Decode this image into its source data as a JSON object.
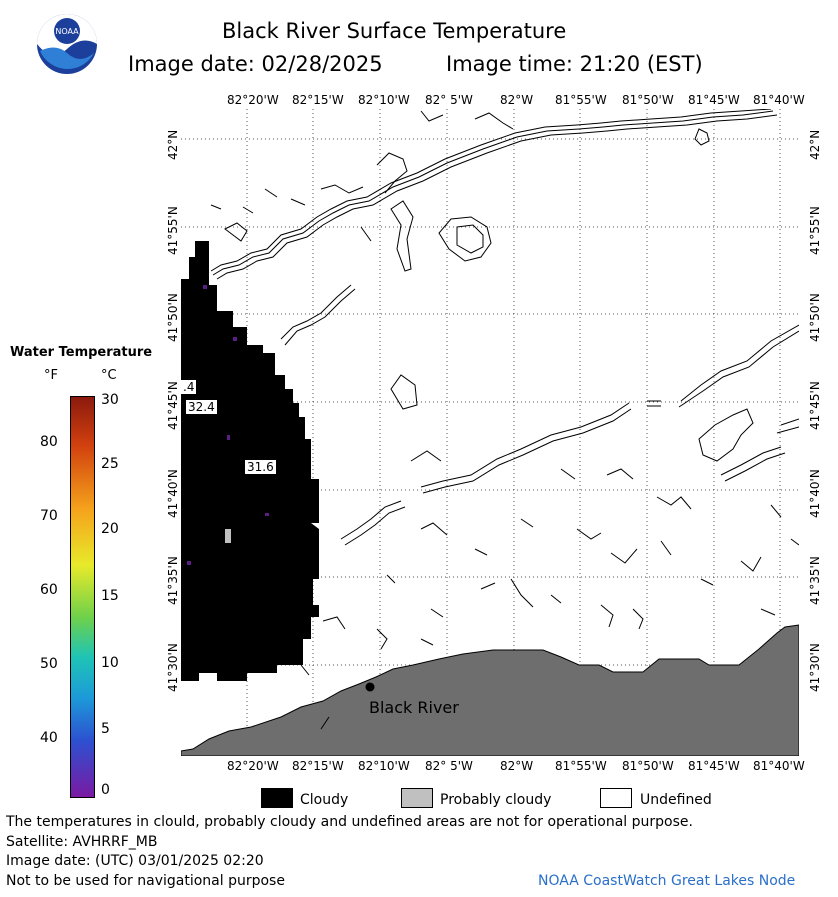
{
  "header": {
    "title": "Black River Surface Temperature",
    "image_date": "Image date: 02/28/2025",
    "image_time": "Image time: 21:20 (EST)"
  },
  "logo": {
    "text": "NOAA"
  },
  "lon_labels": [
    "82°20'W",
    "82°15'W",
    "82°10'W",
    "82° 5'W",
    "82°W",
    "81°55'W",
    "81°50'W",
    "81°45'W",
    "81°40'W"
  ],
  "lat_labels": [
    "42°N",
    "41°55'N",
    "41°50'N",
    "41°45'N",
    "41°40'N",
    "41°35'N",
    "41°30'N"
  ],
  "map_labels": {
    "temp_a": "32.4",
    "temp_b": "31.6",
    "temp_edge": ".4",
    "place": "Black River"
  },
  "colorbar": {
    "title": "Water Temperature",
    "unit_f": "°F",
    "unit_c": "°C",
    "f_ticks": [
      "80",
      "70",
      "60",
      "50",
      "40"
    ],
    "c_ticks": [
      "30",
      "25",
      "20",
      "15",
      "10",
      "5",
      "0"
    ]
  },
  "legend": {
    "cloudy": "Cloudy",
    "probably_cloudy": "Probably cloudy",
    "undefined": "Undefined"
  },
  "footer": {
    "disclaimer": "The temperatures in clould, probably cloudy and undefined areas are not for operational purpose.",
    "satellite": "Satellite: AVHRRF_MB",
    "utc_date": "Image date: (UTC) 03/01/2025  02:20",
    "nav_warning": "Not to be used for navigational purpose",
    "credit": "NOAA CoastWatch Great Lakes Node"
  },
  "colors": {
    "land": "#6e6e6e",
    "cloud": "#000000",
    "probably_cloudy": "#c0c0c0",
    "credit": "#2a6fc9"
  }
}
